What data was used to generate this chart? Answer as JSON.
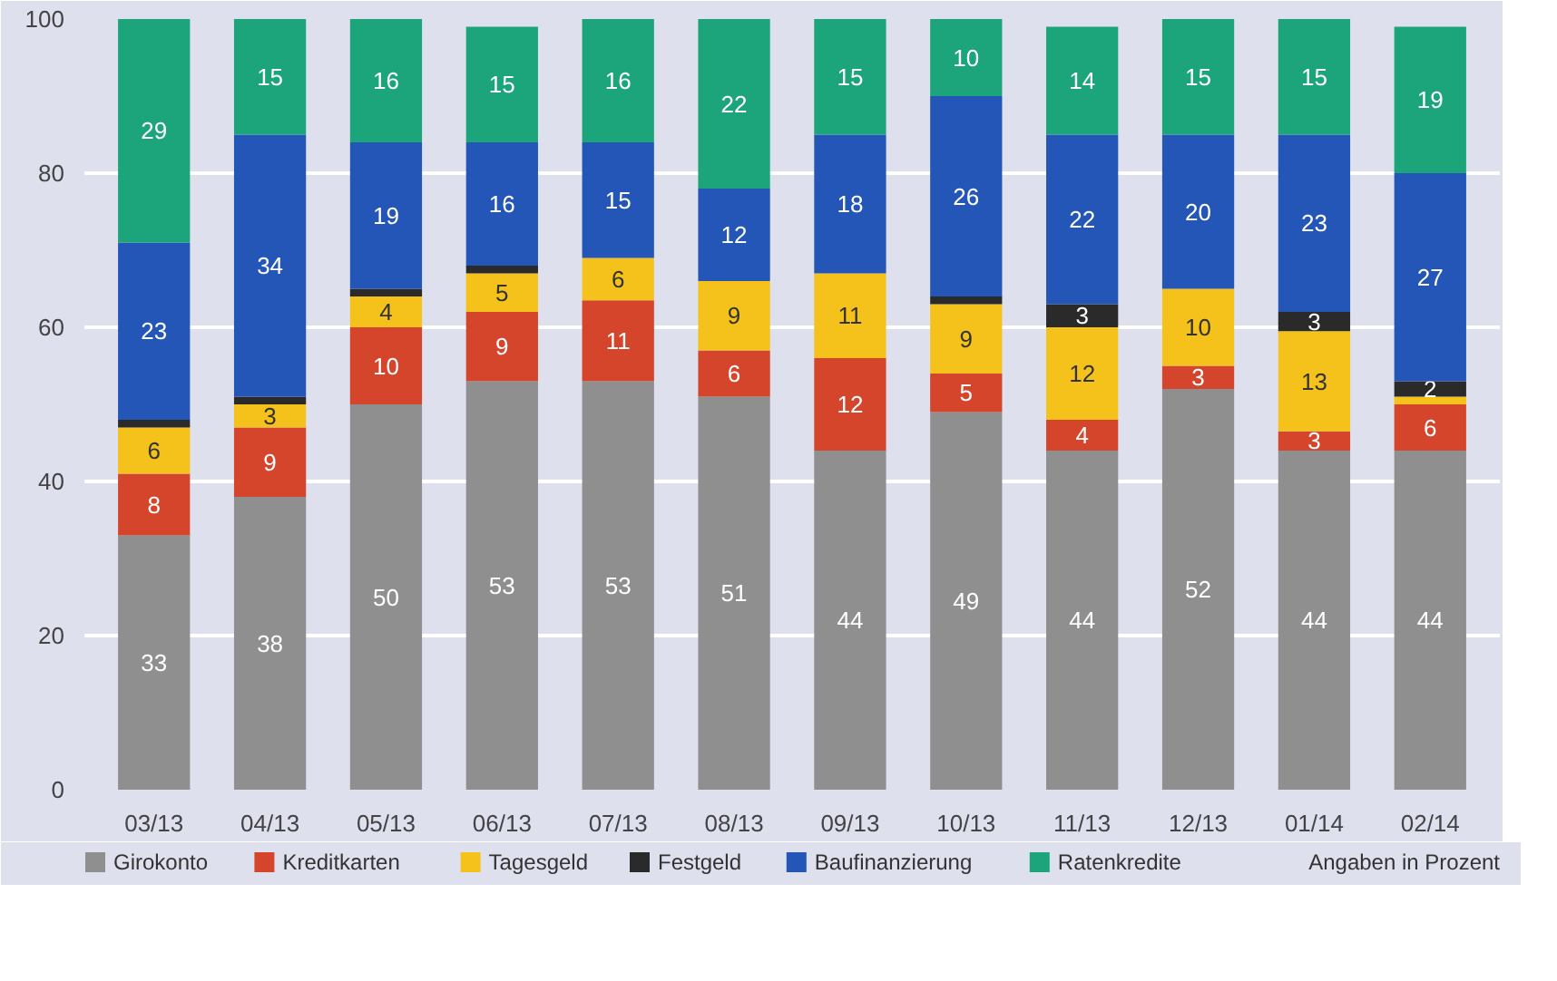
{
  "chart_data": {
    "type": "bar",
    "stacked": true,
    "categories": [
      "03/13",
      "04/13",
      "05/13",
      "06/13",
      "07/13",
      "08/13",
      "09/13",
      "10/13",
      "11/13",
      "12/13",
      "01/14",
      "02/14"
    ],
    "series": [
      {
        "name": "Girokonto",
        "color": "#8f8f8f",
        "values": [
          33,
          38,
          50,
          53,
          53,
          51,
          44,
          49,
          44,
          52,
          44,
          44
        ],
        "value_labels": [
          "33",
          "38",
          "50",
          "53",
          "53",
          "51",
          "44",
          "49",
          "44",
          "52",
          "44",
          "44"
        ]
      },
      {
        "name": "Kreditkarten",
        "color": "#d4452c",
        "values": [
          8,
          9,
          10,
          9,
          10.5,
          6,
          12,
          5,
          4,
          3,
          2.5,
          6
        ],
        "value_labels": [
          "8",
          "9",
          "10",
          "9",
          "11",
          "6",
          "12",
          "5",
          "4",
          "3",
          "3",
          "6"
        ]
      },
      {
        "name": "Tagesgeld",
        "color": "#f5c21b",
        "values": [
          6,
          3,
          4,
          5,
          5.5,
          9,
          11,
          9,
          12,
          10,
          13,
          1
        ],
        "value_labels": [
          "6",
          "3",
          "4",
          "5",
          "6",
          "9",
          "11",
          "9",
          "12",
          "10",
          "13",
          null
        ]
      },
      {
        "name": "Festgeld",
        "color": "#2b2a2a",
        "values": [
          1,
          1,
          1,
          1,
          0,
          0,
          0,
          1,
          3,
          0,
          2.5,
          2
        ],
        "value_labels": [
          null,
          null,
          null,
          null,
          null,
          null,
          null,
          null,
          "3",
          null,
          "3",
          "2"
        ]
      },
      {
        "name": "Baufinanzierung",
        "color": "#2456b8",
        "values": [
          23,
          34,
          19,
          16,
          15,
          12,
          18,
          26,
          22,
          20,
          23,
          27
        ],
        "value_labels": [
          "23",
          "34",
          "19",
          "16",
          "15",
          "12",
          "18",
          "26",
          "22",
          "20",
          "23",
          "27"
        ]
      },
      {
        "name": "Ratenkredite",
        "color": "#1ca57b",
        "values": [
          29,
          15,
          16,
          15,
          16,
          22,
          15,
          10,
          14,
          15,
          15,
          19
        ],
        "value_labels": [
          "29",
          "15",
          "16",
          "15",
          "16",
          "22",
          "15",
          "10",
          "14",
          "15",
          "15",
          "19"
        ]
      }
    ],
    "ylim": [
      0,
      100
    ],
    "yticks": [
      0,
      20,
      40,
      60,
      80,
      100
    ],
    "grid": "y",
    "legend": "bottom",
    "annotations": [
      "Angaben in Prozent"
    ]
  }
}
